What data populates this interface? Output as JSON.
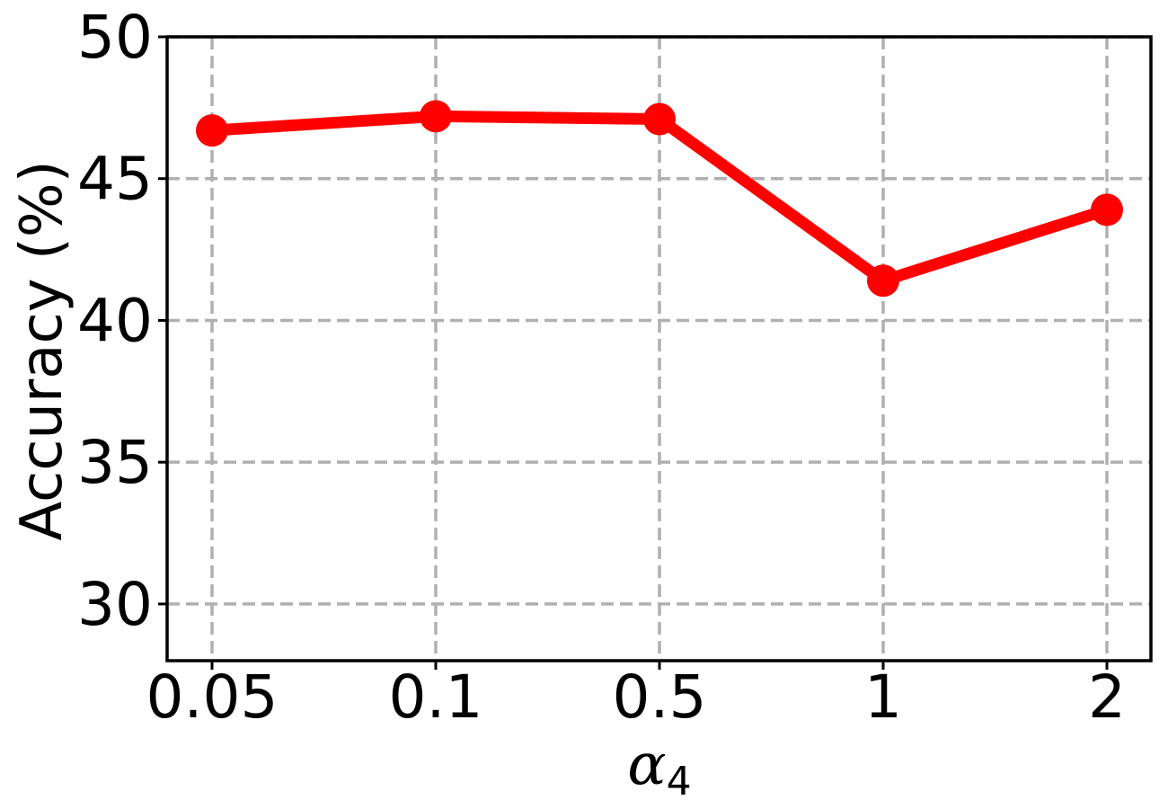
{
  "chart_data": {
    "type": "line",
    "categories": [
      "0.05",
      "0.1",
      "0.5",
      "1",
      "2"
    ],
    "series": [
      {
        "values": [
          46.7,
          47.2,
          47.1,
          41.4,
          43.9
        ],
        "color": "#ff0000"
      }
    ],
    "xlabel_base": "α",
    "xlabel_subscript": "4",
    "ylabel": "Accuracy (%)",
    "ylim": [
      28,
      50
    ],
    "yticks": [
      "30",
      "35",
      "40",
      "45",
      "50"
    ],
    "ytick_values": [
      30,
      35,
      40,
      45,
      50
    ],
    "grid": true,
    "grid_color": "#b0b0b0"
  }
}
